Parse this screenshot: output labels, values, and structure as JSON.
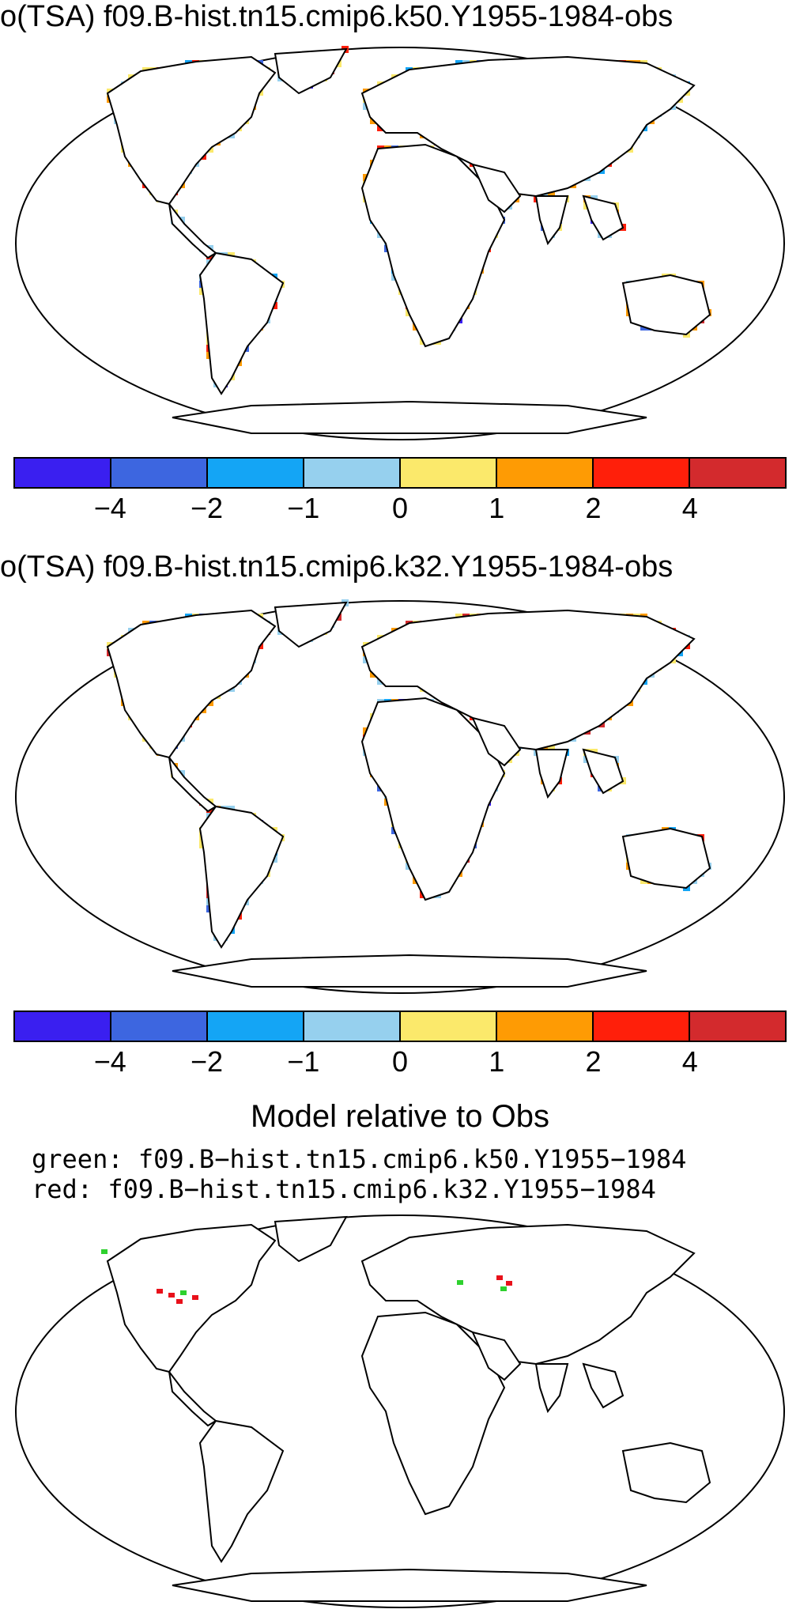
{
  "panels": [
    {
      "title": "o(TSA) f09.B-hist.tn15.cmip6.k50.Y1955-1984-obs",
      "variant": "k50"
    },
    {
      "title": "o(TSA) f09.B-hist.tn15.cmip6.k32.Y1955-1984-obs",
      "variant": "k32"
    }
  ],
  "colorbar": {
    "colors": [
      "#3a1ff0",
      "#3d66e0",
      "#14a5f5",
      "#96d0ee",
      "#fbe96b",
      "#fe9b04",
      "#ff1f0a",
      "#d32a2d"
    ],
    "tick_labels": [
      "−4",
      "−2",
      "−1",
      "0",
      "1",
      "2",
      "4"
    ]
  },
  "comparison": {
    "title": "Model relative to Obs",
    "green_label": "green: f09.B−hist.tn15.cmip6.k50.Y1955−1984",
    "red_label": "red: f09.B−hist.tn15.cmip6.k32.Y1955−1984",
    "green_color": "#2ed12e",
    "red_color": "#e8101a"
  }
}
